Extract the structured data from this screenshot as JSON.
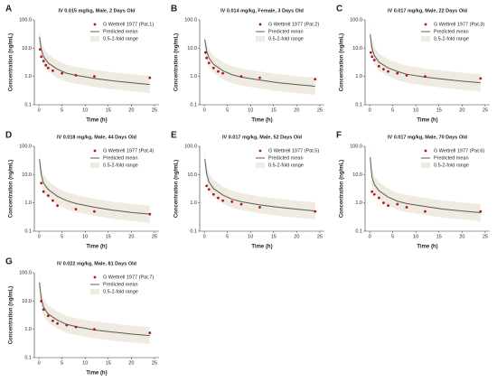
{
  "chart_data": [
    {
      "type": "line",
      "panel_label": "A",
      "title": "IV 0.015 mg/kg, Male, 2 Days Old",
      "x_label": "Time (h)",
      "y_label": "Concentration (ng/mL)",
      "log_y": true,
      "xlim": [
        -1,
        26
      ],
      "xticks": [
        0,
        5,
        10,
        15,
        20,
        25
      ],
      "ylim": [
        0.1,
        100
      ],
      "yticks": [
        0.1,
        {
          "value": 1,
          "label": "1.0"
        },
        {
          "value": 10,
          "label": "10.0"
        },
        {
          "value": 100,
          "label": "100.0"
        }
      ],
      "series": [
        {
          "name": "G Wettrell 1977 (Pat.1)",
          "mark": "point",
          "color": "#b0141c",
          "x": [
            0.25,
            0.5,
            1,
            1.5,
            2,
            3,
            5,
            8,
            12,
            24
          ],
          "values": [
            9,
            5,
            3.5,
            2.5,
            2,
            1.6,
            1.3,
            1.1,
            1,
            0.9
          ]
        },
        {
          "name": "Predicted mean",
          "mark": "line",
          "color": "#5a5a5a",
          "x": [
            0.1,
            0.5,
            1,
            2,
            4,
            6,
            8,
            12,
            16,
            20,
            24
          ],
          "values": [
            25,
            9,
            5,
            3,
            1.8,
            1.3,
            1.1,
            0.85,
            0.7,
            0.6,
            0.52
          ]
        },
        {
          "name": "0.5-2-fold range",
          "mark": "band",
          "color": "#efebe0",
          "x": [
            0.1,
            0.5,
            1,
            2,
            4,
            6,
            8,
            12,
            16,
            20,
            24
          ],
          "lower": [
            12.5,
            4.5,
            2.5,
            1.5,
            0.9,
            0.65,
            0.55,
            0.425,
            0.35,
            0.3,
            0.26
          ],
          "upper": [
            50,
            18,
            10,
            6,
            3.6,
            2.6,
            2.2,
            1.7,
            1.4,
            1.2,
            1.04
          ]
        }
      ]
    },
    {
      "type": "line",
      "panel_label": "B",
      "title": "IV 0.014 mg/kg, Female, 3 Days Old",
      "x_label": "Time (h)",
      "y_label": "Concentration (ng/mL)",
      "log_y": true,
      "xlim": [
        -1,
        26
      ],
      "xticks": [
        0,
        5,
        10,
        15,
        20,
        25
      ],
      "ylim": [
        0.1,
        100
      ],
      "yticks": [
        0.1,
        {
          "value": 1,
          "label": "1.0"
        },
        {
          "value": 10,
          "label": "10.0"
        },
        {
          "value": 100,
          "label": "100.0"
        }
      ],
      "series": [
        {
          "name": "G Wettrell 1977 (Pat.2)",
          "mark": "point",
          "color": "#b0141c",
          "x": [
            0.25,
            0.5,
            1,
            2,
            3,
            4,
            8,
            12,
            24
          ],
          "values": [
            7,
            4.5,
            3,
            2,
            1.5,
            1.3,
            1,
            0.9,
            0.8
          ]
        },
        {
          "name": "Predicted mean",
          "mark": "line",
          "color": "#5a5a5a",
          "x": [
            0.1,
            0.5,
            1,
            2,
            4,
            6,
            8,
            12,
            16,
            20,
            24
          ],
          "values": [
            20,
            8,
            4.5,
            2.7,
            1.6,
            1.15,
            0.95,
            0.75,
            0.6,
            0.52,
            0.45
          ]
        },
        {
          "name": "0.5-2-fold range",
          "mark": "band",
          "color": "#efebe0",
          "x": [
            0.1,
            0.5,
            1,
            2,
            4,
            6,
            8,
            12,
            16,
            20,
            24
          ],
          "lower": [
            10,
            4,
            2.25,
            1.35,
            0.8,
            0.575,
            0.475,
            0.375,
            0.3,
            0.26,
            0.225
          ],
          "upper": [
            40,
            16,
            9,
            5.4,
            3.2,
            2.3,
            1.9,
            1.5,
            1.2,
            1.04,
            0.9
          ]
        }
      ]
    },
    {
      "type": "line",
      "panel_label": "C",
      "title": "IV 0.017 mg/kg, Male, 22 Days Old",
      "x_label": "Time (h)",
      "y_label": "Concentration (ng/mL)",
      "log_y": true,
      "xlim": [
        -1,
        26
      ],
      "xticks": [
        0,
        5,
        10,
        15,
        20,
        25
      ],
      "ylim": [
        0.1,
        100
      ],
      "yticks": [
        0.1,
        {
          "value": 1,
          "label": "1.0"
        },
        {
          "value": 10,
          "label": "10.0"
        },
        {
          "value": 100,
          "label": "100.0"
        }
      ],
      "series": [
        {
          "name": "G Wettrell 1977 (Pat.3)",
          "mark": "point",
          "color": "#b0141c",
          "x": [
            0.25,
            0.5,
            1,
            2,
            3,
            4,
            6,
            8,
            12,
            24
          ],
          "values": [
            7,
            5,
            3.8,
            2.3,
            1.8,
            1.5,
            1.3,
            1.1,
            1,
            0.85
          ]
        },
        {
          "name": "Predicted mean",
          "mark": "line",
          "color": "#5a5a5a",
          "x": [
            0.1,
            0.5,
            1,
            2,
            4,
            6,
            8,
            12,
            16,
            20,
            24
          ],
          "values": [
            30,
            10,
            5.5,
            3.2,
            2,
            1.5,
            1.2,
            0.95,
            0.8,
            0.68,
            0.6
          ]
        },
        {
          "name": "0.5-2-fold range",
          "mark": "band",
          "color": "#efebe0",
          "x": [
            0.1,
            0.5,
            1,
            2,
            4,
            6,
            8,
            12,
            16,
            20,
            24
          ],
          "lower": [
            15,
            5,
            2.75,
            1.6,
            1,
            0.75,
            0.6,
            0.475,
            0.4,
            0.34,
            0.3
          ],
          "upper": [
            60,
            20,
            11,
            6.4,
            4,
            3,
            2.4,
            1.9,
            1.6,
            1.36,
            1.2
          ]
        }
      ]
    },
    {
      "type": "line",
      "panel_label": "D",
      "title": "IV 0.018 mg/kg, Male, 44 Days Old",
      "x_label": "Time (h)",
      "y_label": "Concentration (ng/mL)",
      "log_y": true,
      "xlim": [
        -1,
        26
      ],
      "xticks": [
        0,
        5,
        10,
        15,
        20,
        25
      ],
      "ylim": [
        0.1,
        100
      ],
      "yticks": [
        0.1,
        {
          "value": 1,
          "label": "1.0"
        },
        {
          "value": 10,
          "label": "10.0"
        },
        {
          "value": 100,
          "label": "100.0"
        }
      ],
      "series": [
        {
          "name": "G Wettrell 1977 (Pat.4)",
          "mark": "point",
          "color": "#b0141c",
          "x": [
            0.5,
            1,
            2,
            3,
            4,
            8,
            12,
            24
          ],
          "values": [
            5,
            2.5,
            1.8,
            1.2,
            0.8,
            0.6,
            0.5,
            0.4
          ]
        },
        {
          "name": "Predicted mean",
          "mark": "line",
          "color": "#5a5a5a",
          "x": [
            0.1,
            0.5,
            1,
            2,
            4,
            6,
            8,
            12,
            16,
            20,
            24
          ],
          "values": [
            35,
            10,
            5,
            3,
            1.7,
            1.2,
            0.95,
            0.7,
            0.55,
            0.46,
            0.4
          ]
        },
        {
          "name": "0.5-2-fold range",
          "mark": "band",
          "color": "#efebe0",
          "x": [
            0.1,
            0.5,
            1,
            2,
            4,
            6,
            8,
            12,
            16,
            20,
            24
          ],
          "lower": [
            17.5,
            5,
            2.5,
            1.5,
            0.85,
            0.6,
            0.475,
            0.35,
            0.275,
            0.23,
            0.2
          ],
          "upper": [
            70,
            20,
            10,
            6,
            3.4,
            2.4,
            1.9,
            1.4,
            1.1,
            0.92,
            0.8
          ]
        }
      ]
    },
    {
      "type": "line",
      "panel_label": "E",
      "title": "IV 0.017 mg/kg, Male, 52 Days Old",
      "x_label": "Time (h)",
      "y_label": "Concentration (ng/mL)",
      "log_y": true,
      "xlim": [
        -1,
        26
      ],
      "xticks": [
        0,
        5,
        10,
        15,
        20,
        25
      ],
      "ylim": [
        0.1,
        100
      ],
      "yticks": [
        0.1,
        {
          "value": 1,
          "label": "1.0"
        },
        {
          "value": 10,
          "label": "10.0"
        },
        {
          "value": 100,
          "label": "100.0"
        }
      ],
      "series": [
        {
          "name": "G Wettrell 1977 (Pat.5)",
          "mark": "point",
          "color": "#b0141c",
          "x": [
            0.5,
            1,
            2,
            3,
            4,
            6,
            8,
            12,
            24
          ],
          "values": [
            4,
            3,
            2,
            1.5,
            1.2,
            1.1,
            0.9,
            0.7,
            0.5
          ]
        },
        {
          "name": "Predicted mean",
          "mark": "line",
          "color": "#5a5a5a",
          "x": [
            0.1,
            0.5,
            1,
            2,
            4,
            6,
            8,
            12,
            16,
            20,
            24
          ],
          "values": [
            35,
            11,
            5.5,
            3.2,
            1.9,
            1.35,
            1.1,
            0.85,
            0.7,
            0.6,
            0.52
          ]
        },
        {
          "name": "0.5-2-fold range",
          "mark": "band",
          "color": "#efebe0",
          "x": [
            0.1,
            0.5,
            1,
            2,
            4,
            6,
            8,
            12,
            16,
            20,
            24
          ],
          "lower": [
            17.5,
            5.5,
            2.75,
            1.6,
            0.95,
            0.675,
            0.55,
            0.425,
            0.35,
            0.3,
            0.26
          ],
          "upper": [
            70,
            22,
            11,
            6.4,
            3.8,
            2.7,
            2.2,
            1.7,
            1.4,
            1.2,
            1.04
          ]
        }
      ]
    },
    {
      "type": "line",
      "panel_label": "F",
      "title": "IV 0.017 mg/kg, Male, 70 Days Old",
      "x_label": "Time (h)",
      "y_label": "Concentration (ng/mL)",
      "log_y": true,
      "xlim": [
        -1,
        26
      ],
      "xticks": [
        0,
        5,
        10,
        15,
        20,
        25
      ],
      "ylim": [
        0.1,
        100
      ],
      "yticks": [
        0.1,
        {
          "value": 1,
          "label": "1.0"
        },
        {
          "value": 10,
          "label": "10.0"
        },
        {
          "value": 100,
          "label": "100.0"
        }
      ],
      "series": [
        {
          "name": "G Wettrell 1977 (Pat.6)",
          "mark": "point",
          "color": "#b0141c",
          "x": [
            0.5,
            1,
            2,
            3,
            4,
            6,
            8,
            12,
            24
          ],
          "values": [
            2.5,
            2,
            1.5,
            1,
            0.8,
            0.9,
            0.7,
            0.5,
            0.5
          ]
        },
        {
          "name": "Predicted mean",
          "mark": "line",
          "color": "#5a5a5a",
          "x": [
            0.1,
            0.5,
            1,
            2,
            4,
            6,
            8,
            12,
            16,
            20,
            24
          ],
          "values": [
            40,
            8,
            4.5,
            2.7,
            1.6,
            1.15,
            0.95,
            0.75,
            0.6,
            0.52,
            0.45
          ]
        },
        {
          "name": "0.5-2-fold range",
          "mark": "band",
          "color": "#efebe0",
          "x": [
            0.1,
            0.5,
            1,
            2,
            4,
            6,
            8,
            12,
            16,
            20,
            24
          ],
          "lower": [
            20,
            4,
            2.25,
            1.35,
            0.8,
            0.575,
            0.475,
            0.375,
            0.3,
            0.26,
            0.225
          ],
          "upper": [
            80,
            16,
            9,
            5.4,
            3.2,
            2.3,
            1.9,
            1.5,
            1.2,
            1.04,
            0.9
          ]
        }
      ]
    },
    {
      "type": "line",
      "panel_label": "G",
      "title": "IV 0.022 mg/kg, Male, 81 Days Old",
      "x_label": "Time (h)",
      "y_label": "Concentration (ng/mL)",
      "log_y": true,
      "xlim": [
        -1,
        26
      ],
      "xticks": [
        0,
        5,
        10,
        15,
        20,
        25
      ],
      "ylim": [
        0.1,
        100
      ],
      "yticks": [
        0.1,
        {
          "value": 1,
          "label": "1.0"
        },
        {
          "value": 10,
          "label": "10.0"
        },
        {
          "value": 100,
          "label": "100.0"
        }
      ],
      "series": [
        {
          "name": "G Wettrell 1977 (Pat.7)",
          "mark": "point",
          "color": "#b0141c",
          "x": [
            0.5,
            1,
            2,
            3,
            4,
            6,
            8,
            12,
            24
          ],
          "values": [
            10,
            5,
            3,
            2,
            1.6,
            1.4,
            1.2,
            1,
            0.75
          ]
        },
        {
          "name": "Predicted mean",
          "mark": "line",
          "color": "#5a5a5a",
          "x": [
            0.1,
            0.5,
            1,
            2,
            4,
            6,
            8,
            12,
            16,
            20,
            24
          ],
          "values": [
            45,
            12,
            6,
            3.5,
            2.1,
            1.5,
            1.25,
            0.95,
            0.8,
            0.68,
            0.6
          ]
        },
        {
          "name": "0.5-2-fold range",
          "mark": "band",
          "color": "#efebe0",
          "x": [
            0.1,
            0.5,
            1,
            2,
            4,
            6,
            8,
            12,
            16,
            20,
            24
          ],
          "lower": [
            22.5,
            6,
            3,
            1.75,
            1.05,
            0.75,
            0.625,
            0.475,
            0.4,
            0.34,
            0.3
          ],
          "upper": [
            90,
            24,
            12,
            7,
            4.2,
            3,
            2.5,
            1.9,
            1.6,
            1.36,
            1.2
          ]
        }
      ]
    }
  ]
}
